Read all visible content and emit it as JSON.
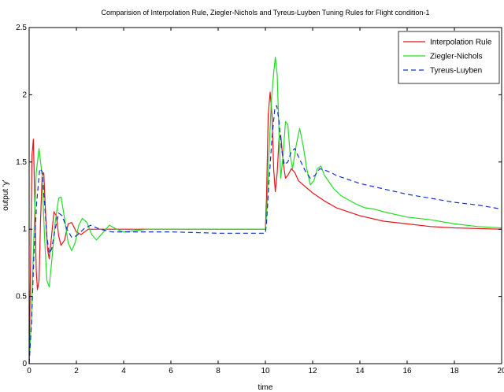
{
  "chart_data": {
    "type": "line",
    "title": "Comparision of Interpolation Rule, Ziegler-Nichols and Tyreus-Luyben Tuning Rules for Flight condition-1",
    "xlabel": "time",
    "ylabel": "output 'y'",
    "xlim": [
      0,
      20
    ],
    "ylim": [
      0,
      2.5
    ],
    "xticks": [
      "0",
      "2",
      "4",
      "6",
      "8",
      "10",
      "12",
      "14",
      "16",
      "18",
      "20"
    ],
    "yticks": [
      "0",
      "0.5",
      "1",
      "1.5",
      "2",
      "2.5"
    ],
    "grid": false,
    "legend_position": "top-right",
    "series": [
      {
        "name": "Interpolation Rule",
        "color": "#e8141a",
        "style": "solid",
        "points": [
          [
            0,
            0
          ],
          [
            0.05,
            0.6
          ],
          [
            0.12,
            1.55
          ],
          [
            0.18,
            1.67
          ],
          [
            0.24,
            1.2
          ],
          [
            0.3,
            0.7
          ],
          [
            0.35,
            0.55
          ],
          [
            0.42,
            0.62
          ],
          [
            0.48,
            1.05
          ],
          [
            0.55,
            1.4
          ],
          [
            0.62,
            1.42
          ],
          [
            0.7,
            1.1
          ],
          [
            0.78,
            0.85
          ],
          [
            0.85,
            0.78
          ],
          [
            0.95,
            0.95
          ],
          [
            1.05,
            1.13
          ],
          [
            1.15,
            1.1
          ],
          [
            1.25,
            0.95
          ],
          [
            1.35,
            0.88
          ],
          [
            1.5,
            0.92
          ],
          [
            1.65,
            1.04
          ],
          [
            1.8,
            1.05
          ],
          [
            2.0,
            0.98
          ],
          [
            2.2,
            0.96
          ],
          [
            2.5,
            1.0
          ],
          [
            3.0,
            1.0
          ],
          [
            10.0,
            1.0
          ],
          [
            10.05,
            1.25
          ],
          [
            10.12,
            1.85
          ],
          [
            10.2,
            2.02
          ],
          [
            10.28,
            1.85
          ],
          [
            10.35,
            1.45
          ],
          [
            10.42,
            1.28
          ],
          [
            10.5,
            1.42
          ],
          [
            10.58,
            1.68
          ],
          [
            10.65,
            1.7
          ],
          [
            10.75,
            1.5
          ],
          [
            10.85,
            1.38
          ],
          [
            10.95,
            1.4
          ],
          [
            11.1,
            1.45
          ],
          [
            11.25,
            1.42
          ],
          [
            11.4,
            1.36
          ],
          [
            11.6,
            1.33
          ],
          [
            11.8,
            1.3
          ],
          [
            12.0,
            1.27
          ],
          [
            12.5,
            1.21
          ],
          [
            13.0,
            1.16
          ],
          [
            14.0,
            1.1
          ],
          [
            15.0,
            1.06
          ],
          [
            16.0,
            1.04
          ],
          [
            17.0,
            1.02
          ],
          [
            18.0,
            1.01
          ],
          [
            20.0,
            1.0
          ]
        ]
      },
      {
        "name": "Ziegler-Nichols",
        "color": "#22dd22",
        "style": "solid",
        "points": [
          [
            0,
            0
          ],
          [
            0.1,
            0.35
          ],
          [
            0.2,
            0.95
          ],
          [
            0.3,
            1.42
          ],
          [
            0.42,
            1.6
          ],
          [
            0.55,
            1.4
          ],
          [
            0.65,
            0.95
          ],
          [
            0.75,
            0.62
          ],
          [
            0.85,
            0.57
          ],
          [
            0.95,
            0.75
          ],
          [
            1.1,
            1.05
          ],
          [
            1.25,
            1.23
          ],
          [
            1.35,
            1.24
          ],
          [
            1.5,
            1.08
          ],
          [
            1.65,
            0.9
          ],
          [
            1.8,
            0.84
          ],
          [
            1.95,
            0.9
          ],
          [
            2.1,
            1.03
          ],
          [
            2.25,
            1.08
          ],
          [
            2.45,
            1.05
          ],
          [
            2.65,
            0.96
          ],
          [
            2.85,
            0.92
          ],
          [
            3.1,
            0.97
          ],
          [
            3.4,
            1.03
          ],
          [
            3.7,
            1.0
          ],
          [
            4.0,
            0.98
          ],
          [
            4.5,
            0.99
          ],
          [
            5.0,
            1.0
          ],
          [
            6.0,
            1.0
          ],
          [
            8.0,
            1.0
          ],
          [
            10.0,
            1.0
          ],
          [
            10.05,
            1.1
          ],
          [
            10.15,
            1.55
          ],
          [
            10.25,
            1.95
          ],
          [
            10.35,
            2.16
          ],
          [
            10.42,
            2.28
          ],
          [
            10.5,
            2.15
          ],
          [
            10.58,
            1.7
          ],
          [
            10.65,
            1.38
          ],
          [
            10.75,
            1.55
          ],
          [
            10.85,
            1.8
          ],
          [
            10.95,
            1.78
          ],
          [
            11.05,
            1.55
          ],
          [
            11.15,
            1.45
          ],
          [
            11.3,
            1.62
          ],
          [
            11.45,
            1.75
          ],
          [
            11.6,
            1.62
          ],
          [
            11.75,
            1.45
          ],
          [
            11.9,
            1.33
          ],
          [
            12.05,
            1.36
          ],
          [
            12.2,
            1.45
          ],
          [
            12.35,
            1.47
          ],
          [
            12.5,
            1.4
          ],
          [
            12.7,
            1.35
          ],
          [
            12.9,
            1.3
          ],
          [
            13.2,
            1.25
          ],
          [
            13.5,
            1.22
          ],
          [
            13.8,
            1.19
          ],
          [
            14.2,
            1.16
          ],
          [
            14.6,
            1.15
          ],
          [
            15.0,
            1.13
          ],
          [
            15.5,
            1.11
          ],
          [
            16.0,
            1.09
          ],
          [
            17.0,
            1.07
          ],
          [
            18.0,
            1.04
          ],
          [
            19.0,
            1.02
          ],
          [
            20.0,
            1.01
          ]
        ]
      },
      {
        "name": "Tyreus-Luyben",
        "color": "#1530cc",
        "style": "dashed",
        "points": [
          [
            0,
            0
          ],
          [
            0.1,
            0.3
          ],
          [
            0.2,
            0.8
          ],
          [
            0.32,
            1.2
          ],
          [
            0.45,
            1.45
          ],
          [
            0.55,
            1.43
          ],
          [
            0.65,
            1.2
          ],
          [
            0.75,
            0.95
          ],
          [
            0.85,
            0.82
          ],
          [
            0.95,
            0.85
          ],
          [
            1.1,
            1.0
          ],
          [
            1.25,
            1.12
          ],
          [
            1.4,
            1.1
          ],
          [
            1.6,
            1.0
          ],
          [
            1.8,
            0.94
          ],
          [
            2.0,
            0.95
          ],
          [
            2.3,
            1.0
          ],
          [
            2.6,
            1.03
          ],
          [
            3.0,
            1.0
          ],
          [
            3.5,
            0.98
          ],
          [
            4.0,
            0.98
          ],
          [
            5.0,
            0.98
          ],
          [
            6.0,
            0.98
          ],
          [
            8.0,
            0.97
          ],
          [
            10.0,
            0.97
          ],
          [
            10.05,
            1.05
          ],
          [
            10.15,
            1.35
          ],
          [
            10.28,
            1.68
          ],
          [
            10.4,
            1.9
          ],
          [
            10.48,
            1.92
          ],
          [
            10.58,
            1.8
          ],
          [
            10.68,
            1.6
          ],
          [
            10.8,
            1.48
          ],
          [
            10.95,
            1.5
          ],
          [
            11.1,
            1.58
          ],
          [
            11.25,
            1.6
          ],
          [
            11.45,
            1.52
          ],
          [
            11.7,
            1.43
          ],
          [
            11.9,
            1.38
          ],
          [
            12.1,
            1.4
          ],
          [
            12.3,
            1.45
          ],
          [
            12.5,
            1.44
          ],
          [
            12.8,
            1.42
          ],
          [
            13.0,
            1.4
          ],
          [
            13.5,
            1.37
          ],
          [
            14.0,
            1.34
          ],
          [
            15.0,
            1.3
          ],
          [
            16.0,
            1.26
          ],
          [
            17.0,
            1.23
          ],
          [
            18.0,
            1.2
          ],
          [
            19.0,
            1.18
          ],
          [
            20.0,
            1.15
          ]
        ]
      }
    ]
  }
}
